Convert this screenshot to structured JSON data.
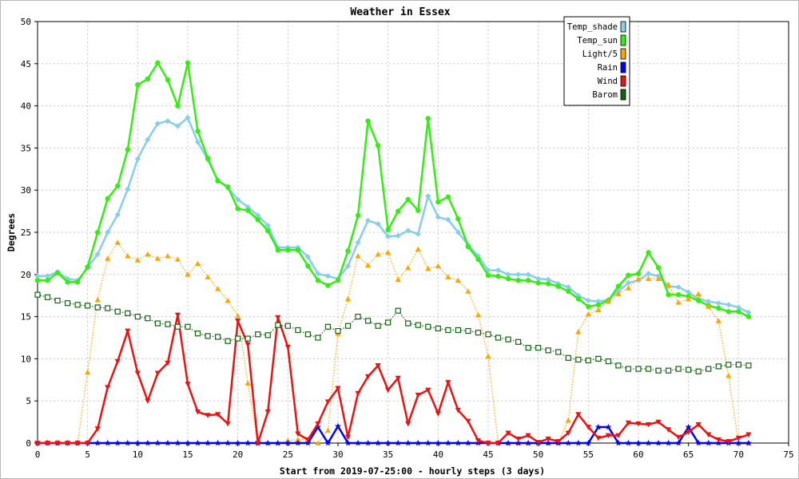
{
  "chart_data": {
    "type": "line",
    "title": "Weather in Essex",
    "xlabel": "Start from 2019-07-25:00 - hourly steps (3 days)",
    "ylabel": "Degrees",
    "xlim": [
      0,
      75
    ],
    "ylim": [
      0,
      50
    ],
    "x_ticks": [
      0,
      5,
      10,
      15,
      20,
      25,
      30,
      35,
      40,
      45,
      50,
      55,
      60,
      65,
      70,
      75
    ],
    "y_ticks": [
      0,
      5,
      10,
      15,
      20,
      25,
      30,
      35,
      40,
      45,
      50
    ],
    "grid": true,
    "legend_position": "top-right",
    "series": [
      {
        "name": "Temp_shade",
        "color": "#87ceeb",
        "marker": "diamond",
        "values": [
          19.8,
          19.8,
          20.3,
          19.5,
          19.3,
          20.8,
          22.4,
          25.0,
          27.1,
          30.1,
          33.7,
          36.0,
          37.9,
          38.2,
          37.6,
          38.6,
          35.7,
          33.6,
          31.2,
          30.3,
          28.9,
          28.0,
          27.0,
          25.8,
          23.2,
          23.2,
          23.2,
          22.1,
          20.1,
          19.8,
          19.5,
          21.0,
          23.8,
          26.4,
          26.0,
          24.5,
          24.6,
          25.2,
          24.8,
          29.3,
          26.8,
          26.5,
          25.0,
          23.5,
          22.2,
          20.5,
          20.5,
          20.0,
          20.0,
          20.0,
          19.5,
          19.4,
          18.9,
          18.5,
          17.5,
          16.9,
          16.8,
          17.0,
          18.0,
          19.0,
          19.3,
          20.1,
          19.8,
          18.6,
          18.5,
          17.9,
          17.1,
          16.8,
          16.6,
          16.4,
          16.1,
          15.5
        ]
      },
      {
        "name": "Temp_sun",
        "color": "#33ee11",
        "marker": "circle",
        "values": [
          19.3,
          19.3,
          20.2,
          19.1,
          19.1,
          20.9,
          25.0,
          29.0,
          30.5,
          34.8,
          42.5,
          43.2,
          45.1,
          43.1,
          40.0,
          45.1,
          37.0,
          33.8,
          31.1,
          30.4,
          27.8,
          27.6,
          26.5,
          25.2,
          22.9,
          22.9,
          22.9,
          21.0,
          19.3,
          18.7,
          19.3,
          22.8,
          27.0,
          38.2,
          35.3,
          25.3,
          27.5,
          28.9,
          27.6,
          38.5,
          28.6,
          29.2,
          26.6,
          23.3,
          21.8,
          19.9,
          19.8,
          19.5,
          19.3,
          19.3,
          19.0,
          18.9,
          18.6,
          18.0,
          17.1,
          16.2,
          16.4,
          16.9,
          18.6,
          19.9,
          20.1,
          22.6,
          20.8,
          17.6,
          17.6,
          17.4,
          16.9,
          16.3,
          16.0,
          15.6,
          15.6,
          15.0
        ]
      },
      {
        "name": "Light/5",
        "color": "#ffa500",
        "marker": "triangle-up",
        "values": [
          0.0,
          0.0,
          0.0,
          0.0,
          0.0,
          8.4,
          17.0,
          21.9,
          23.8,
          22.2,
          21.7,
          22.4,
          21.9,
          22.2,
          21.8,
          20.0,
          21.3,
          19.7,
          18.3,
          16.9,
          15.1,
          7.1,
          0.0,
          0.0,
          0.0,
          0.3,
          0.4,
          0.4,
          0.0,
          1.5,
          13.0,
          17.1,
          22.2,
          21.1,
          22.4,
          22.6,
          19.4,
          20.8,
          23.0,
          20.7,
          21.0,
          19.7,
          19.3,
          18.0,
          15.2,
          10.3,
          0.0,
          0.0,
          0.0,
          0.0,
          0.0,
          0.0,
          0.0,
          2.7,
          13.2,
          15.3,
          15.8,
          16.8,
          17.7,
          18.4,
          19.5,
          19.5,
          19.5,
          18.8,
          16.7,
          17.1,
          17.7,
          16.2,
          14.5,
          8.0,
          0.0,
          0.0
        ]
      },
      {
        "name": "Rain",
        "color": "#0000ff",
        "marker": "star",
        "values": [
          0.0,
          0.0,
          0.0,
          0.0,
          0.0,
          0.0,
          0.0,
          0.0,
          0.0,
          0.0,
          0.0,
          0.0,
          0.0,
          0.0,
          0.0,
          0.0,
          0.0,
          0.0,
          0.0,
          0.0,
          0.0,
          0.0,
          0.0,
          0.0,
          0.0,
          0.0,
          0.0,
          0.0,
          1.9,
          0.0,
          2.0,
          0.0,
          0.0,
          0.0,
          0.0,
          0.0,
          0.0,
          0.0,
          0.0,
          0.0,
          0.0,
          0.0,
          0.0,
          0.0,
          0.0,
          0.0,
          0.0,
          0.0,
          0.0,
          0.0,
          0.0,
          0.0,
          0.0,
          0.0,
          0.0,
          0.0,
          1.9,
          1.9,
          0.0,
          0.0,
          0.0,
          0.0,
          0.0,
          0.0,
          0.0,
          1.9,
          0.0,
          0.0,
          0.0,
          0.0,
          0.0,
          0.0
        ]
      },
      {
        "name": "Wind",
        "color": "#ee1111",
        "marker": "triangle-down",
        "values": [
          0.0,
          0.0,
          0.0,
          0.0,
          0.0,
          0.0,
          1.7,
          6.6,
          9.7,
          13.3,
          8.3,
          5.0,
          8.3,
          9.5,
          15.2,
          7.0,
          3.7,
          3.3,
          3.4,
          2.3,
          14.5,
          11.7,
          0.0,
          3.7,
          14.9,
          11.4,
          1.1,
          0.4,
          2.3,
          4.9,
          6.5,
          0.7,
          5.9,
          7.9,
          9.2,
          6.3,
          7.7,
          2.3,
          5.7,
          6.3,
          3.5,
          7.2,
          3.9,
          2.6,
          0.3,
          0.0,
          0.0,
          1.2,
          0.5,
          0.9,
          0.1,
          0.5,
          0.2,
          1.2,
          3.4,
          1.9,
          0.6,
          0.9,
          0.9,
          2.4,
          2.3,
          2.2,
          2.5,
          1.6,
          0.7,
          1.3,
          2.2,
          1.0,
          0.4,
          0.2,
          0.6,
          1.0
        ]
      },
      {
        "name": "Barom",
        "color": "#116611",
        "marker": "square-open",
        "values": [
          17.6,
          17.3,
          16.9,
          16.6,
          16.4,
          16.3,
          16.1,
          16.0,
          15.6,
          15.4,
          15.0,
          14.8,
          14.2,
          14.1,
          13.8,
          13.8,
          13.0,
          12.7,
          12.6,
          12.1,
          12.4,
          12.4,
          12.9,
          12.8,
          14.0,
          13.9,
          13.4,
          12.9,
          12.5,
          13.8,
          13.3,
          13.9,
          15.0,
          14.5,
          13.9,
          14.3,
          15.7,
          14.2,
          14.0,
          13.8,
          13.6,
          13.4,
          13.4,
          13.3,
          13.1,
          12.9,
          12.5,
          12.3,
          12.0,
          11.3,
          11.3,
          11.0,
          10.8,
          10.1,
          9.9,
          9.8,
          10.0,
          9.7,
          9.2,
          8.8,
          8.8,
          8.8,
          8.6,
          8.6,
          8.8,
          8.7,
          8.5,
          8.8,
          9.1,
          9.3,
          9.3,
          9.2
        ]
      }
    ]
  }
}
